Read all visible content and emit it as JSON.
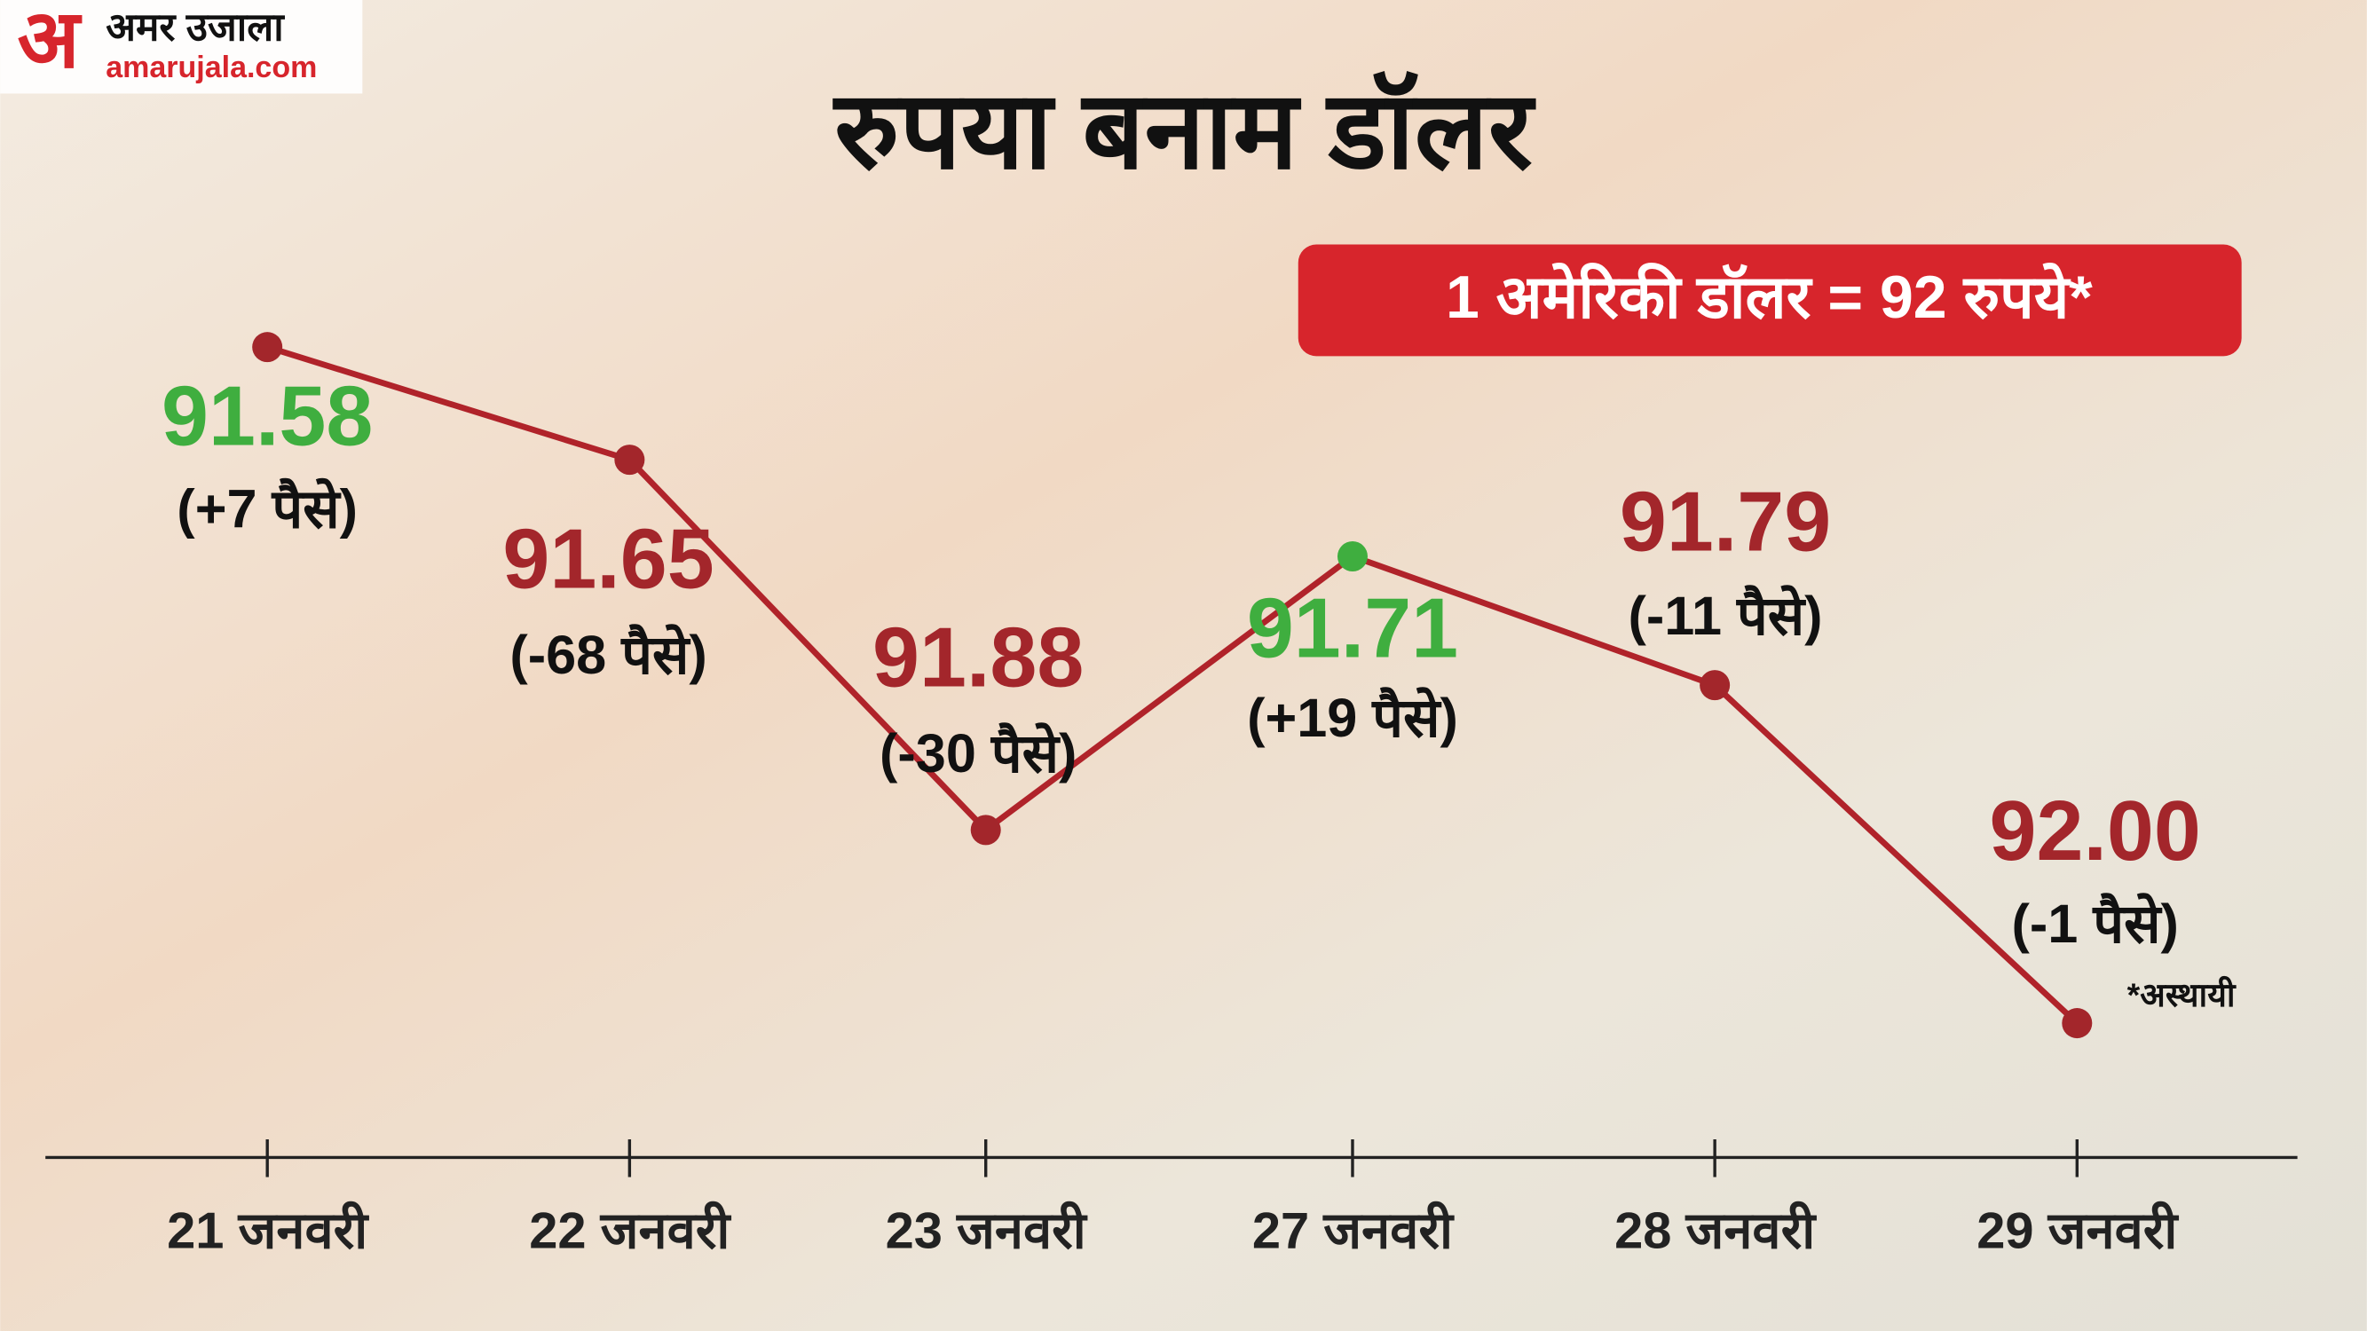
{
  "logo": {
    "mark": "अ",
    "name": "अमर उजाला",
    "site": "amarujala.com"
  },
  "chart_data": {
    "type": "line",
    "title": "रुपया बनाम डॉलर",
    "badge": "1 अमेरिकी डॉलर = 92 रुपये*",
    "note": "*अस्थायी",
    "categories": [
      "21 जनवरी",
      "22 जनवरी",
      "23 जनवरी",
      "27 जनवरी",
      "28 जनवरी",
      "29 जनवरी"
    ],
    "values": [
      91.58,
      91.65,
      91.88,
      91.71,
      91.79,
      92
    ],
    "value_labels": [
      "91.58",
      "91.65",
      "91.88",
      "91.71",
      "91.79",
      "92.00"
    ],
    "changes": [
      "(+7 पैसे)",
      "(-68 पैसे)",
      "(-30 पैसे)",
      "(+19 पैसे)",
      "(-11 पैसे)",
      "(-1 पैसे)"
    ],
    "color": "#b0232a",
    "label_colors": [
      "#3fae3f",
      "#a3262b",
      "#a3262b",
      "#3fae3f",
      "#a3262b",
      "#a3262b"
    ],
    "point_colors": [
      "#a3262b",
      "#a3262b",
      "#a3262b",
      "#3fae3f",
      "#a3262b",
      "#a3262b"
    ],
    "invert_y": true
  }
}
